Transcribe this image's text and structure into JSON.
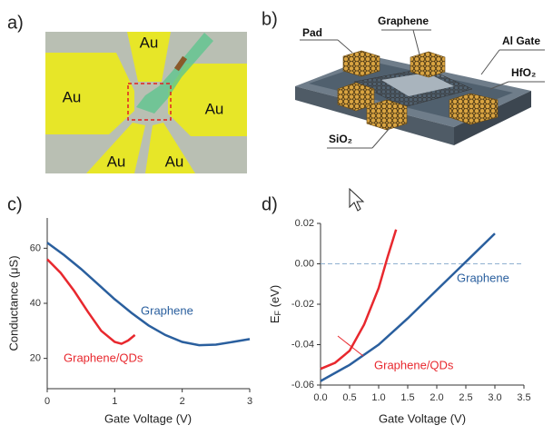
{
  "panels": {
    "a": "a)",
    "b": "b)",
    "c": "c)",
    "d": "d)"
  },
  "image_a": {
    "labels": [
      "Au",
      "Au",
      "Au",
      "Au",
      "Au"
    ]
  },
  "diagram_b": {
    "labels": {
      "pad": "Pad",
      "graphene": "Graphene",
      "al_gate": "Al Gate",
      "hfo2": "HfO₂",
      "sio2": "SiO₂"
    }
  },
  "chart_data": [
    {
      "type": "line",
      "x_label": "Gate Voltage (V)",
      "y_label": "Conductance (μS)",
      "xlim": [
        0,
        3
      ],
      "xticks": [
        0,
        1,
        2,
        3
      ],
      "ylim": [
        9,
        71
      ],
      "yticks": [
        20,
        40,
        60
      ],
      "series": [
        {
          "name": "Graphene",
          "color": "#2a5f9e",
          "x": [
            0,
            0.25,
            0.5,
            0.75,
            1,
            1.25,
            1.5,
            1.75,
            2,
            2.25,
            2.5,
            2.75,
            3
          ],
          "values": [
            62,
            57.5,
            52.5,
            47,
            41.5,
            36.5,
            32,
            28.5,
            26,
            24.8,
            25,
            26,
            27
          ]
        },
        {
          "name": "Graphene/QDs",
          "color": "#e8282e",
          "x": [
            0,
            0.2,
            0.4,
            0.6,
            0.8,
            1.0,
            1.1,
            1.2,
            1.3
          ],
          "values": [
            56,
            51,
            44.5,
            37,
            30,
            26,
            25.3,
            26.5,
            28.5
          ]
        }
      ]
    },
    {
      "type": "line",
      "x_label": "Gate Voltage (V)",
      "y_label": {
        "main": "E",
        "sub": "F",
        "unit": " (eV)"
      },
      "xlim": [
        0,
        3.5
      ],
      "xticks": [
        {
          "value": 0,
          "label": "0.0"
        },
        0.5,
        {
          "value": 1,
          "label": "1.0"
        },
        1.5,
        {
          "value": 2,
          "label": "2.0"
        },
        2.5,
        {
          "value": 3,
          "label": "3.0"
        },
        3.5
      ],
      "ylim": [
        -0.06,
        0.02
      ],
      "yticks": [
        -0.06,
        -0.04,
        -0.02,
        {
          "value": 0,
          "label": "0.00"
        },
        0.02
      ],
      "reference_line": 0,
      "series": [
        {
          "name": "Graphene",
          "color": "#2a5f9e",
          "x": [
            0,
            0.5,
            1,
            1.5,
            2,
            2.5,
            3
          ],
          "values": [
            -0.058,
            -0.05,
            -0.04,
            -0.027,
            -0.013,
            0.001,
            0.015
          ]
        },
        {
          "name": "Graphene/QDs",
          "color": "#e8282e",
          "x": [
            0,
            0.25,
            0.5,
            0.75,
            1,
            1.15,
            1.3
          ],
          "values": [
            -0.052,
            -0.049,
            -0.043,
            -0.03,
            -0.012,
            0.003,
            0.017
          ]
        }
      ]
    }
  ]
}
